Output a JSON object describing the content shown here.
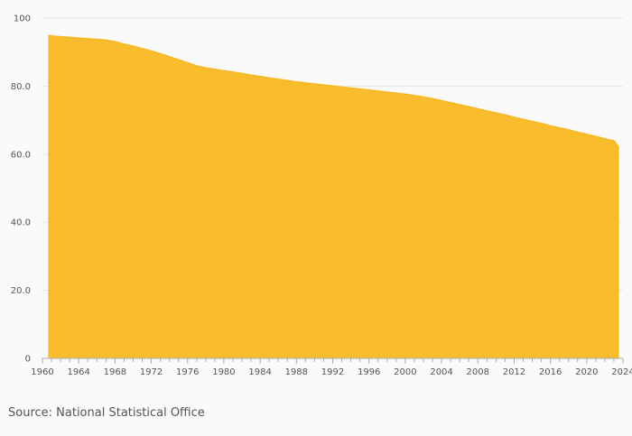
{
  "source_text": "Source: National Statistical Office",
  "chart_data": {
    "type": "area",
    "title": "",
    "xlabel": "",
    "ylabel": "",
    "ylim": [
      0,
      100
    ],
    "yticks": [
      0,
      20.0,
      40.0,
      60.0,
      80.0,
      100
    ],
    "ytick_labels": [
      "0",
      "20.0",
      "40.0",
      "60.0",
      "80.0",
      "100"
    ],
    "xlim": [
      1960,
      2024
    ],
    "xticks": [
      1960,
      1964,
      1968,
      1972,
      1976,
      1980,
      1984,
      1988,
      1992,
      1996,
      2000,
      2004,
      2008,
      2012,
      2016,
      2020,
      2024
    ],
    "grid": "horizontal",
    "legend": "none",
    "colors": {
      "area": "#f9bc2c",
      "grid": "#e6e6e6",
      "axis": "#aaaaaa",
      "text": "#555555"
    },
    "series": [
      {
        "x": [
          1960,
          1961,
          1962,
          1963,
          1964,
          1965,
          1966,
          1967,
          1968,
          1969,
          1970,
          1971,
          1972,
          1973,
          1974,
          1975,
          1976,
          1977,
          1978,
          1979,
          1980,
          1981,
          1982,
          1983,
          1984,
          1985,
          1986,
          1987,
          1988,
          1989,
          1990,
          1991,
          1992,
          1993,
          1994,
          1995,
          1996,
          1997,
          1998,
          1999,
          2000,
          2001,
          2002,
          2003,
          2004,
          2005,
          2006,
          2007,
          2008,
          2009,
          2010,
          2011,
          2012,
          2013,
          2014,
          2015,
          2016,
          2017,
          2018,
          2019,
          2020,
          2021,
          2022,
          2023,
          2024
        ],
        "values": [
          95.0,
          94.8,
          94.6,
          94.4,
          94.2,
          94.0,
          93.8,
          93.6,
          93.1,
          92.4,
          91.8,
          91.1,
          90.4,
          89.6,
          88.7,
          87.8,
          86.9,
          86.0,
          85.4,
          85.0,
          84.6,
          84.2,
          83.8,
          83.3,
          82.9,
          82.5,
          82.1,
          81.7,
          81.3,
          81.0,
          80.7,
          80.4,
          80.1,
          79.8,
          79.5,
          79.2,
          78.9,
          78.6,
          78.3,
          78.0,
          77.7,
          77.3,
          76.9,
          76.4,
          75.8,
          75.2,
          74.6,
          74.0,
          73.4,
          72.8,
          72.2,
          71.6,
          70.9,
          70.3,
          69.7,
          69.1,
          68.4,
          67.8,
          67.2,
          66.5,
          65.9,
          65.3,
          64.6,
          64.0,
          62.3
        ]
      }
    ]
  }
}
